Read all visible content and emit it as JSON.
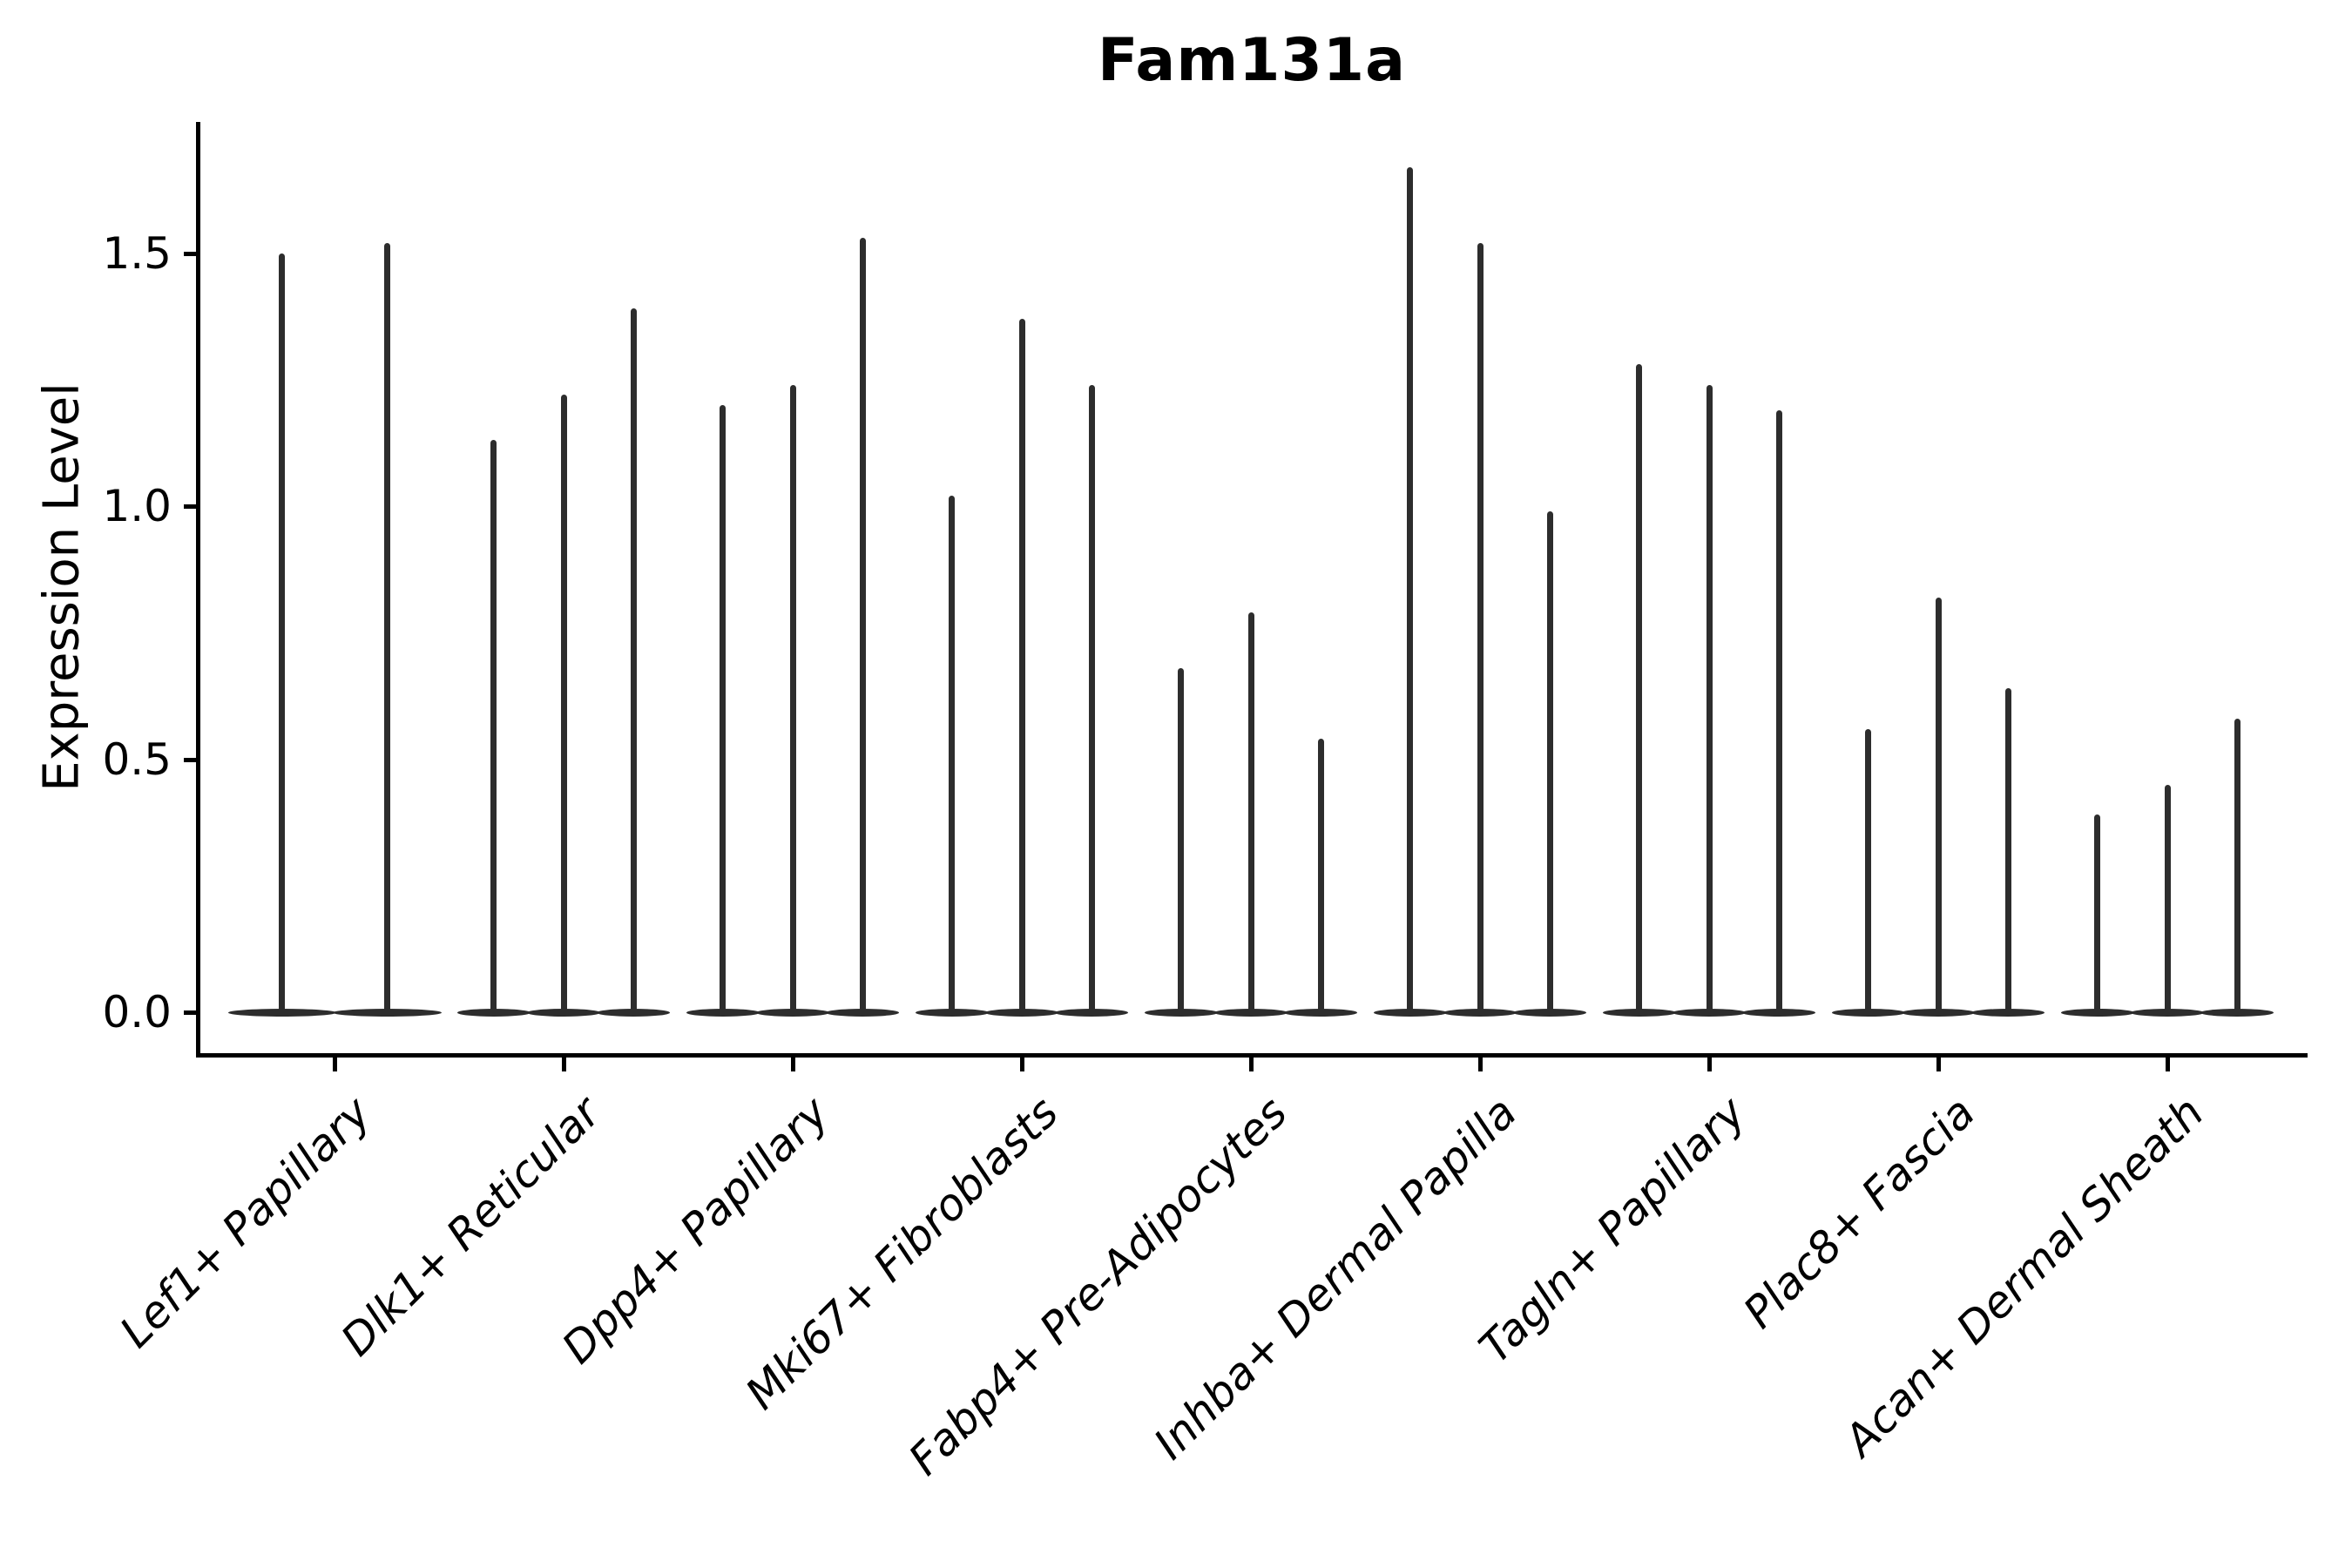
{
  "chart_data": {
    "type": "violin",
    "title": "Fam131a",
    "xlabel": "",
    "ylabel": "Expression Level",
    "legend_position": "none",
    "grid": false,
    "background_color": "#ffffff",
    "violin_color": "#2d2d2d",
    "axis_color": "#000000",
    "ylim": [
      -0.08,
      1.76
    ],
    "ytick_labels": [
      "0.0",
      "0.5",
      "1.0",
      "1.5"
    ],
    "ytick_values": [
      0.0,
      0.5,
      1.0,
      1.5
    ],
    "categories": [
      "Lef1+ Papillary",
      "Dlk1+ Reticular",
      "Dpp4+ Papillary",
      "Mki67+ Fibroblasts",
      "Fabp4+ Pre-Adipocytes",
      "Inhba+ Dermal Papilla",
      "Tagln+ Papillary",
      "Plac8+ Fascia",
      "Acan+ Dermal Sheath"
    ],
    "violin_peaks_per_category": [
      [
        1.5,
        1.52
      ],
      [
        1.13,
        1.22,
        1.39
      ],
      [
        1.2,
        1.24,
        1.53
      ],
      [
        1.02,
        1.37,
        1.24
      ],
      [
        0.68,
        0.79,
        0.54
      ],
      [
        1.67,
        1.52,
        0.99
      ],
      [
        1.28,
        1.24,
        1.19
      ],
      [
        0.56,
        0.82,
        0.64
      ],
      [
        0.39,
        0.45,
        0.58
      ]
    ],
    "violin_baseline_value": 0.0
  }
}
